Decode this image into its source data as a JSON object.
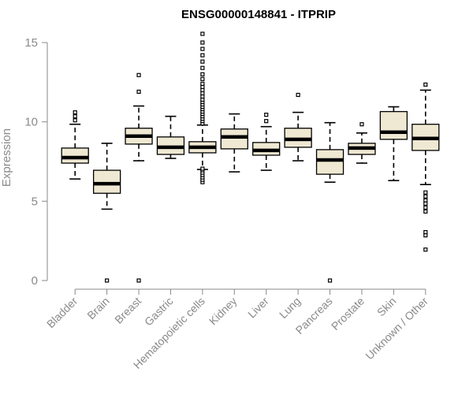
{
  "chart_data": {
    "type": "boxplot",
    "title": "ENSG00000148841 - ITPRIP",
    "xlabel": "",
    "ylabel": "Expression",
    "ylim": [
      0,
      15.5
    ],
    "yticks": [
      0,
      5,
      10,
      15
    ],
    "grid": false,
    "box_fill": "#efe8d2",
    "categories": [
      "Bladder",
      "Brain",
      "Breast",
      "Gastric",
      "Hematopoietic cells",
      "Kidney",
      "Liver",
      "Lung",
      "Pancreas",
      "Prostate",
      "Skin",
      "Unknown / Other"
    ],
    "boxes": [
      {
        "category": "Bladder",
        "whisker_low": 6.4,
        "q1": 7.4,
        "median": 7.75,
        "q3": 8.35,
        "whisker_high": 9.85,
        "outliers": [
          10.1,
          10.35,
          10.6
        ]
      },
      {
        "category": "Brain",
        "whisker_low": 4.5,
        "q1": 5.5,
        "median": 6.1,
        "q3": 6.95,
        "whisker_high": 8.65,
        "outliers": [
          0
        ]
      },
      {
        "category": "Breast",
        "whisker_low": 7.55,
        "q1": 8.6,
        "median": 9.1,
        "q3": 9.6,
        "whisker_high": 11.0,
        "outliers": [
          11.9,
          12.95,
          0
        ]
      },
      {
        "category": "Gastric",
        "whisker_low": 7.7,
        "q1": 7.95,
        "median": 8.4,
        "q3": 9.05,
        "whisker_high": 10.35,
        "outliers": []
      },
      {
        "category": "Hematopoietic cells",
        "whisker_low": 7.0,
        "q1": 8.05,
        "median": 8.4,
        "q3": 8.75,
        "whisker_high": 9.8,
        "outliers": [
          6.2,
          6.35,
          6.5,
          6.65,
          6.8,
          6.95,
          7.05,
          9.9,
          10.05,
          10.2,
          10.35,
          10.5,
          10.65,
          10.8,
          10.95,
          11.1,
          11.25,
          11.4,
          11.6,
          11.8,
          12.0,
          12.2,
          12.4,
          12.7,
          13.0,
          13.4,
          13.8,
          14.2,
          14.6,
          15.0,
          15.55
        ]
      },
      {
        "category": "Kidney",
        "whisker_low": 6.85,
        "q1": 8.3,
        "median": 9.05,
        "q3": 9.55,
        "whisker_high": 10.5,
        "outliers": []
      },
      {
        "category": "Liver",
        "whisker_low": 6.95,
        "q1": 7.9,
        "median": 8.2,
        "q3": 8.7,
        "whisker_high": 9.7,
        "outliers": [
          10.05,
          10.45
        ]
      },
      {
        "category": "Lung",
        "whisker_low": 7.55,
        "q1": 8.4,
        "median": 8.9,
        "q3": 9.6,
        "whisker_high": 10.6,
        "outliers": [
          11.7
        ]
      },
      {
        "category": "Pancreas",
        "whisker_low": 6.2,
        "q1": 6.7,
        "median": 7.6,
        "q3": 8.25,
        "whisker_high": 9.95,
        "outliers": [
          0
        ]
      },
      {
        "category": "Prostate",
        "whisker_low": 7.4,
        "q1": 7.95,
        "median": 8.35,
        "q3": 8.65,
        "whisker_high": 9.3,
        "outliers": [
          9.85
        ]
      },
      {
        "category": "Skin",
        "whisker_low": 6.3,
        "q1": 8.9,
        "median": 9.35,
        "q3": 10.65,
        "whisker_high": 10.95,
        "outliers": []
      },
      {
        "category": "Unknown / Other",
        "whisker_low": 6.05,
        "q1": 8.2,
        "median": 8.95,
        "q3": 9.85,
        "whisker_high": 12.0,
        "outliers": [
          12.35,
          5.55,
          5.3,
          5.05,
          4.85,
          4.6,
          4.35,
          3.05,
          2.85,
          1.95
        ]
      }
    ]
  }
}
